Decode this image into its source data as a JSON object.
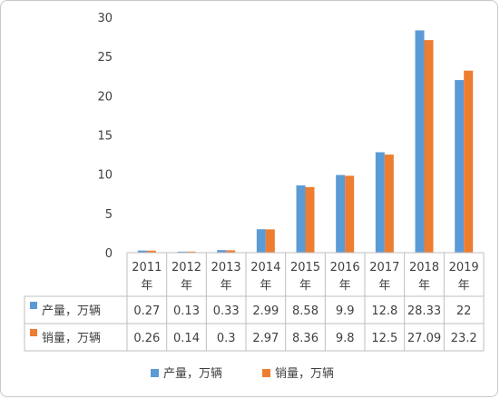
{
  "chart_data": {
    "type": "bar",
    "title": "",
    "xlabel": "",
    "ylabel": "",
    "ylim": [
      0,
      30
    ],
    "yticks": [
      0,
      5,
      10,
      15,
      20,
      25,
      30
    ],
    "grid": false,
    "legend_position": "bottom",
    "categories": [
      "2011年",
      "2012年",
      "2013年",
      "2014年",
      "2015年",
      "2016年",
      "2017年",
      "2018年",
      "2019年"
    ],
    "category_lines": [
      [
        "2011",
        "年"
      ],
      [
        "2012",
        "年"
      ],
      [
        "2013",
        "年"
      ],
      [
        "2014",
        "年"
      ],
      [
        "2015",
        "年"
      ],
      [
        "2016",
        "年"
      ],
      [
        "2017",
        "年"
      ],
      [
        "2018",
        "年"
      ],
      [
        "2019",
        "年"
      ]
    ],
    "series": [
      {
        "name": "产量，万辆",
        "color": "#5b9bd5",
        "values": [
          0.27,
          0.13,
          0.33,
          2.99,
          8.58,
          9.9,
          12.8,
          28.33,
          22
        ],
        "labels": [
          "0.27",
          "0.13",
          "0.33",
          "2.99",
          "8.58",
          "9.9",
          "12.8",
          "28.33",
          "22"
        ]
      },
      {
        "name": "销量，万辆",
        "color": "#ed7d31",
        "values": [
          0.26,
          0.14,
          0.3,
          2.97,
          8.36,
          9.8,
          12.5,
          27.09,
          23.2
        ],
        "labels": [
          "0.26",
          "0.14",
          "0.3",
          "2.97",
          "8.36",
          "9.8",
          "12.5",
          "27.09",
          "23.2"
        ]
      }
    ]
  }
}
